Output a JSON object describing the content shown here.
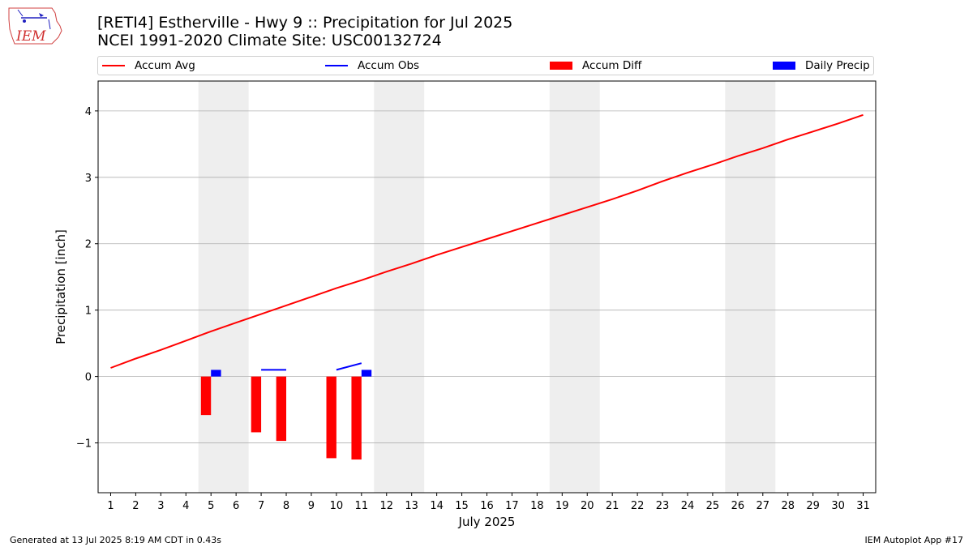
{
  "header": {
    "logo_text": "IEM",
    "title_line1": "[RETI4] Estherville - Hwy 9 :: Precipitation for Jul 2025",
    "title_line2": "NCEI 1991-2020 Climate Site: USC00132724"
  },
  "legend": [
    {
      "label": "Accum Avg",
      "kind": "line",
      "color": "#ff0000"
    },
    {
      "label": "Accum Obs",
      "kind": "line",
      "color": "#0000ff"
    },
    {
      "label": "Accum Diff",
      "kind": "patch",
      "color": "#ff0000"
    },
    {
      "label": "Daily Precip",
      "kind": "patch",
      "color": "#0000ff"
    }
  ],
  "footer": {
    "left": "Generated at 13 Jul 2025 8:19 AM CDT in 0.43s",
    "right": "IEM Autoplot App #17"
  },
  "chart_data": {
    "type": "bar",
    "xlabel": "July 2025",
    "ylabel": "Precipitation [inch]",
    "x": [
      1,
      2,
      3,
      4,
      5,
      6,
      7,
      8,
      9,
      10,
      11,
      12,
      13,
      14,
      15,
      16,
      17,
      18,
      19,
      20,
      21,
      22,
      23,
      24,
      25,
      26,
      27,
      28,
      29,
      30,
      31
    ],
    "xlim": [
      0.5,
      31.5
    ],
    "ylim": [
      -1.75,
      4.45
    ],
    "yticks": [
      -1,
      0,
      1,
      2,
      3,
      4
    ],
    "ytick_labels": [
      "−1",
      "0",
      "1",
      "2",
      "3",
      "4"
    ],
    "grid": "y",
    "weekend_shading": [
      [
        4.5,
        6.5
      ],
      [
        11.5,
        13.5
      ],
      [
        18.5,
        20.5
      ],
      [
        25.5,
        27.5
      ]
    ],
    "accum_avg": [
      0.13,
      0.27,
      0.4,
      0.54,
      0.68,
      0.81,
      0.94,
      1.07,
      1.2,
      1.33,
      1.45,
      1.58,
      1.7,
      1.83,
      1.95,
      2.07,
      2.19,
      2.31,
      2.43,
      2.55,
      2.67,
      2.8,
      2.94,
      3.07,
      3.19,
      3.32,
      3.44,
      3.57,
      3.69,
      3.81,
      3.94
    ],
    "accum_obs_segments": [
      {
        "x": [
          7,
          8
        ],
        "y": [
          0.1,
          0.1
        ]
      },
      {
        "x": [
          10,
          11
        ],
        "y": [
          0.1,
          0.2
        ]
      }
    ],
    "accum_diff": [
      {
        "x": 5,
        "value": -0.58
      },
      {
        "x": 7,
        "value": -0.84
      },
      {
        "x": 8,
        "value": -0.97
      },
      {
        "x": 10,
        "value": -1.23
      },
      {
        "x": 11,
        "value": -1.25
      }
    ],
    "daily_precip": [
      {
        "x": 5,
        "value": 0.1
      },
      {
        "x": 11,
        "value": 0.1
      }
    ],
    "colors": {
      "avg": "#ff0000",
      "obs": "#0000ff",
      "diff": "#ff0000",
      "daily": "#0000ff",
      "shade": "#eeeeee",
      "grid": "#b0b0b0"
    }
  }
}
